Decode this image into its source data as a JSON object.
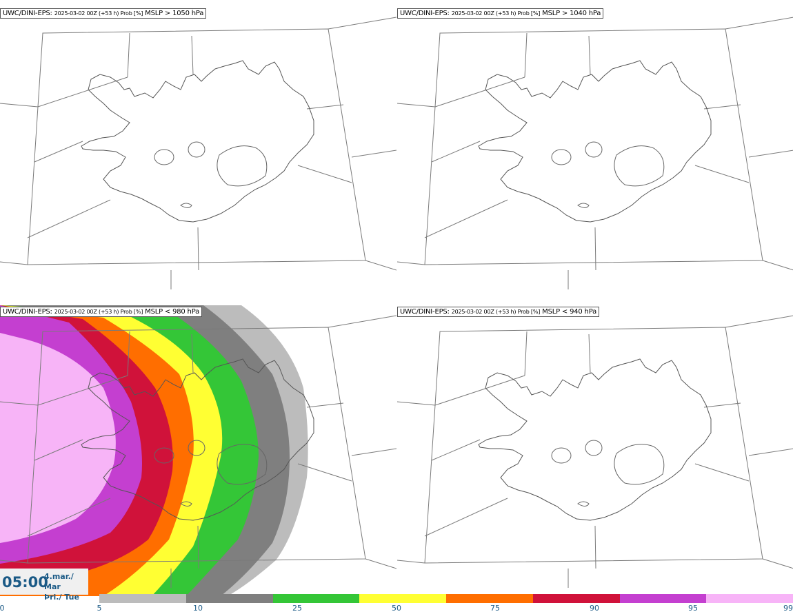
{
  "panels": [
    {
      "model": "UWC/DINI-EPS",
      "run": "2025-03-02 00Z (+53 h) Prob [%]",
      "threshold": "MSLP > 1050 hPa"
    },
    {
      "model": "UWC/DINI-EPS",
      "run": "2025-03-02 00Z (+53 h) Prob [%]",
      "threshold": "MSLP > 1040 hPa"
    },
    {
      "model": "UWC/DINI-EPS",
      "run": "2025-03-02 00Z (+53 h) Prob [%]",
      "threshold": "MSLP < 980 hPa"
    },
    {
      "model": "UWC/DINI-EPS",
      "run": "2025-03-02 00Z (+53 h) Prob [%]",
      "threshold": "MSLP < 940 hPa"
    }
  ],
  "time": {
    "clock": "05:00",
    "date_line1": "4.mar./ Mar",
    "date_line2": "Þri./ Tue"
  },
  "colorbar": {
    "labels": [
      "0",
      "5",
      "10",
      "25",
      "50",
      "75",
      "90",
      "95",
      "99"
    ],
    "colors": [
      "#bcbcbc",
      "#7f7f7f",
      "#34c637",
      "#ffff33",
      "#ff6e00",
      "#d0123a",
      "#c43fd0",
      "#f7b4f7"
    ]
  }
}
